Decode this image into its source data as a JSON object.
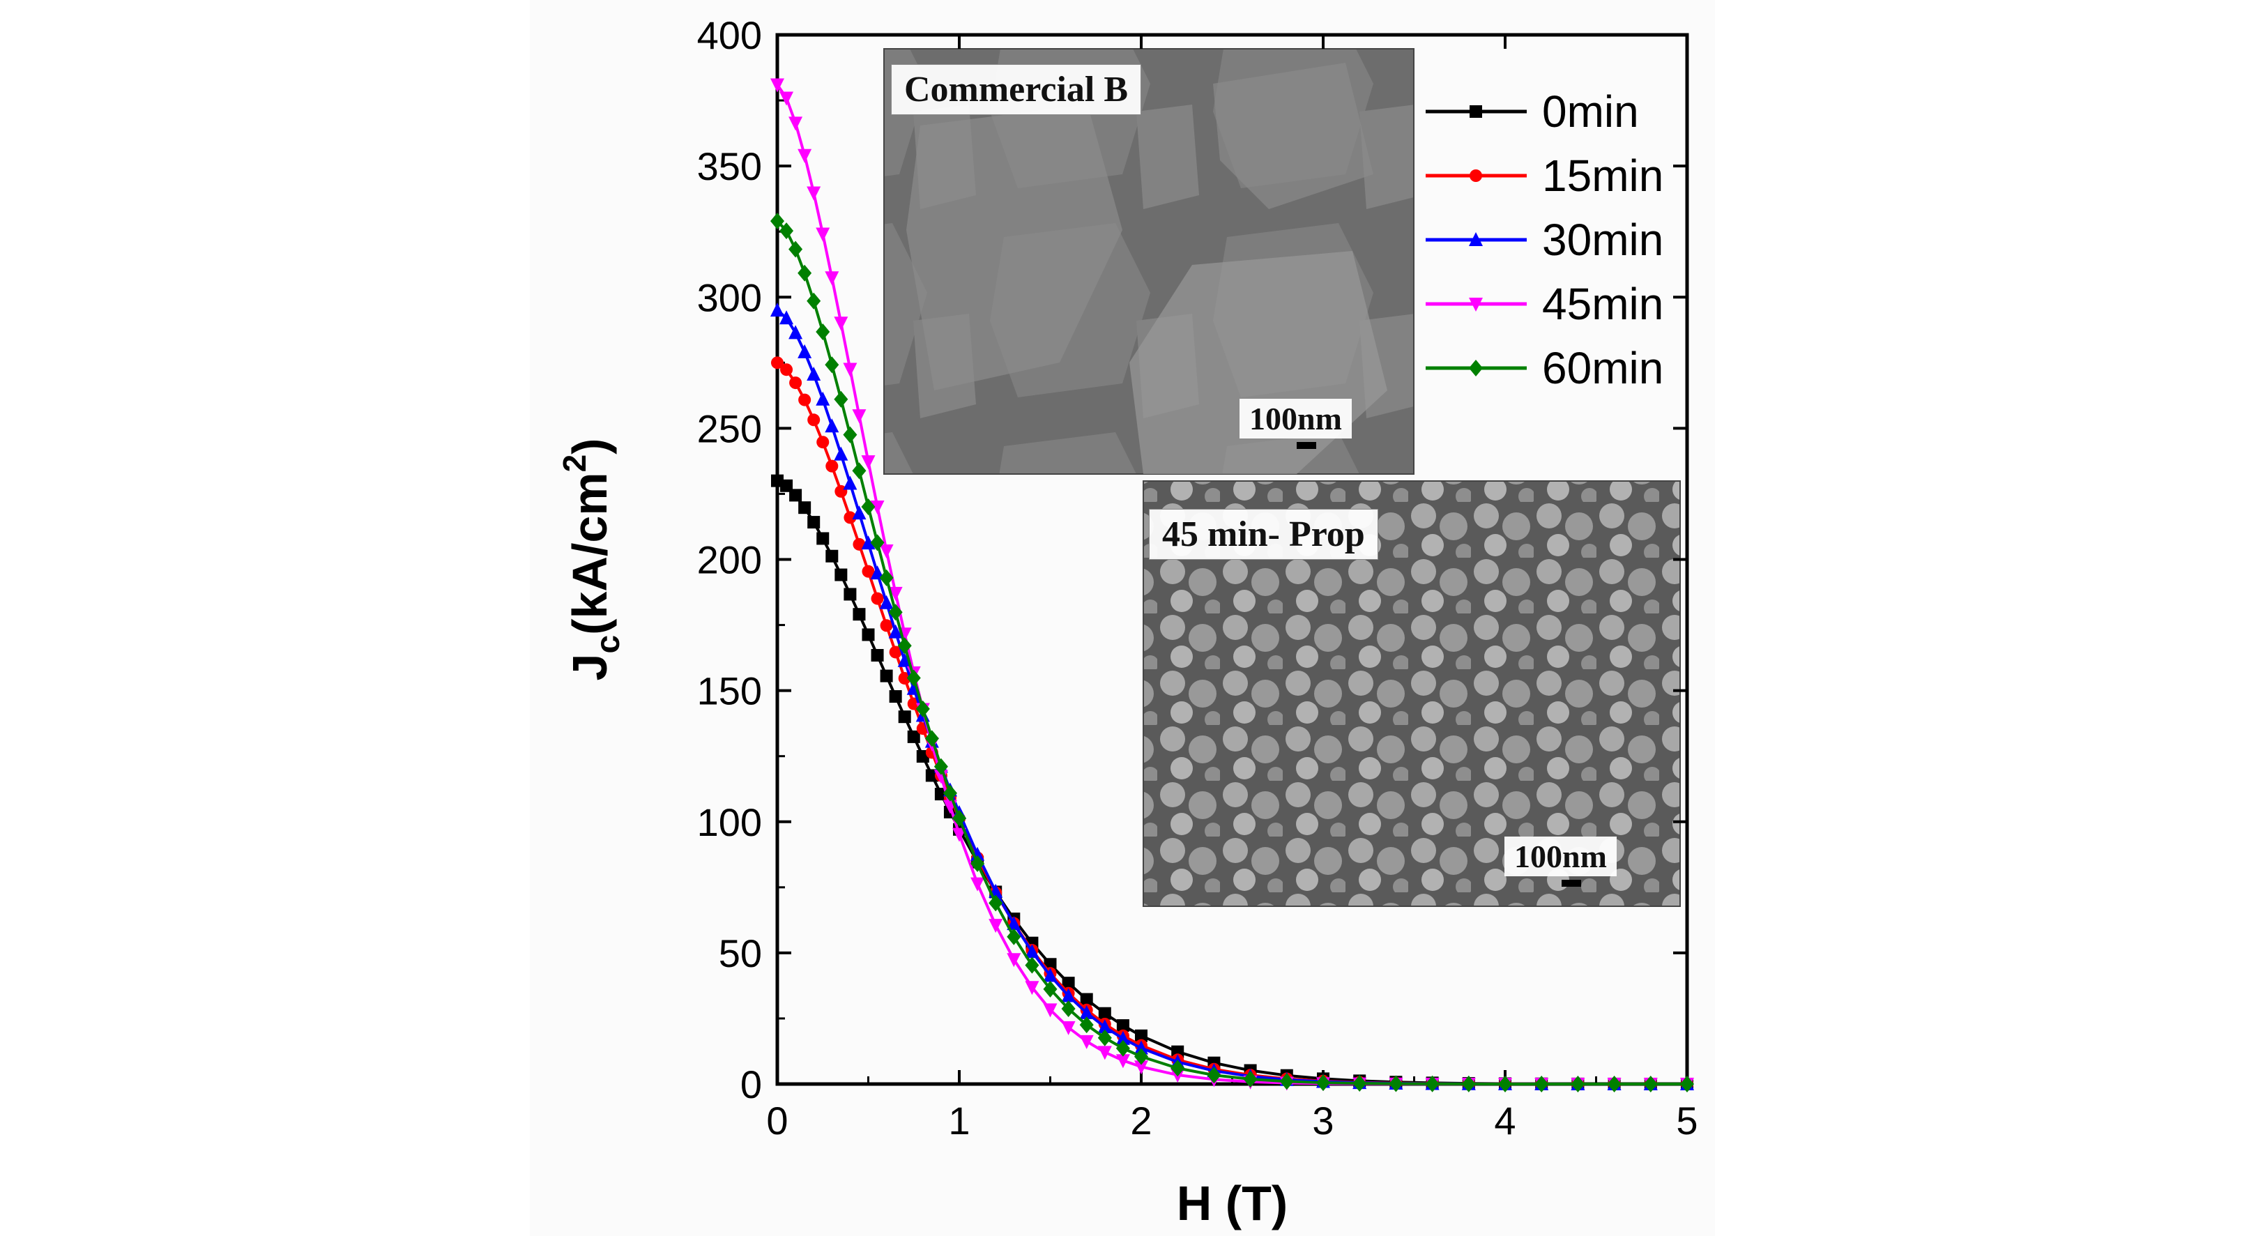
{
  "chart_data": {
    "type": "line",
    "xlabel": "H (T)",
    "ylabel_main": "J",
    "ylabel_sub": "c",
    "ylabel_unit": "(kA/cm",
    "ylabel_sup": "2",
    "ylabel_close": ")",
    "xlim": [
      0,
      5
    ],
    "ylim": [
      0,
      400
    ],
    "xticks": [
      0,
      1,
      2,
      3,
      4,
      5
    ],
    "yticks": [
      0,
      50,
      100,
      150,
      200,
      250,
      300,
      350,
      400
    ],
    "grid": false,
    "legend_position": "top-right",
    "series": [
      {
        "name": "0min",
        "color": "#000000",
        "marker": "square",
        "peak": 230,
        "shape": 1.1
      },
      {
        "name": "15min",
        "color": "#ff0000",
        "marker": "circle",
        "peak": 275,
        "shape": 1.0
      },
      {
        "name": "30min",
        "color": "#0000ff",
        "marker": "triangle-up",
        "peak": 295,
        "shape": 0.97
      },
      {
        "name": "45min",
        "color": "#ff00ff",
        "marker": "triangle-down",
        "peak": 381,
        "shape": 0.81
      },
      {
        "name": "60min",
        "color": "#008000",
        "marker": "diamond",
        "peak": 329,
        "shape": 0.9
      }
    ],
    "x": [
      0,
      0.05,
      0.1,
      0.15,
      0.2,
      0.25,
      0.3,
      0.35,
      0.4,
      0.45,
      0.5,
      0.55,
      0.6,
      0.65,
      0.7,
      0.75,
      0.8,
      0.85,
      0.9,
      0.95,
      1,
      1.1,
      1.2,
      1.3,
      1.4,
      1.5,
      1.6,
      1.7,
      1.8,
      1.9,
      2,
      2.2,
      2.4,
      2.6,
      2.8,
      3,
      3.2,
      3.4,
      3.6,
      3.8,
      4,
      4.2,
      4.4,
      4.6,
      4.8,
      5
    ]
  },
  "insets": {
    "top_label": "Commercial B",
    "top_scale": "100nm",
    "bottom_label": "45 min- Prop",
    "bottom_scale": "100nm"
  }
}
